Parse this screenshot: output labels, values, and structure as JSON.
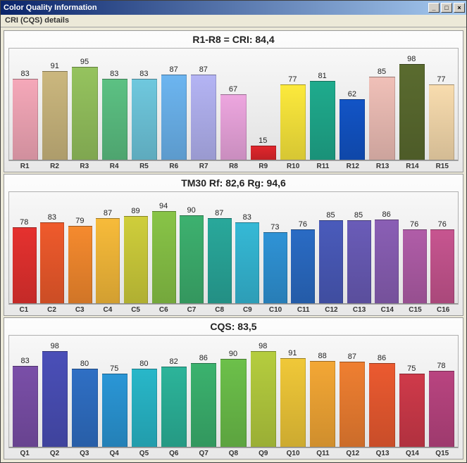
{
  "window": {
    "title": "Color Quality Information",
    "subheader": "CRI (CQS) details"
  },
  "icons": {
    "minimize": "_",
    "maximize": "□",
    "close": "×"
  },
  "charts": [
    {
      "id": "cri",
      "title": "R1-R8 = CRI: 84,4",
      "ymax": 100,
      "title_fontsize": 14,
      "label_fontsize": 10,
      "value_fontsize": 11,
      "background": "linear-gradient(#f8f8f8,#e2e2e2)",
      "bars": [
        {
          "label": "R1",
          "value": 83,
          "color": "#f5a8b9"
        },
        {
          "label": "R2",
          "value": 91,
          "color": "#cbb77e"
        },
        {
          "label": "R3",
          "value": 95,
          "color": "#95c35e"
        },
        {
          "label": "R4",
          "value": 83,
          "color": "#5cc183"
        },
        {
          "label": "R5",
          "value": 83,
          "color": "#6fc8de"
        },
        {
          "label": "R6",
          "value": 87,
          "color": "#6cb5f0"
        },
        {
          "label": "R7",
          "value": 87,
          "color": "#b4b4f4"
        },
        {
          "label": "R8",
          "value": 67,
          "color": "#eda6df"
        },
        {
          "label": "R9",
          "value": 15,
          "color": "#e0262c"
        },
        {
          "label": "R10",
          "value": 77,
          "color": "#fce93c"
        },
        {
          "label": "R11",
          "value": 81,
          "color": "#1fab8d"
        },
        {
          "label": "R12",
          "value": 62,
          "color": "#1254c6"
        },
        {
          "label": "R13",
          "value": 85,
          "color": "#f0c0b8"
        },
        {
          "label": "R14",
          "value": 98,
          "color": "#5a6b2f"
        },
        {
          "label": "R15",
          "value": 77,
          "color": "#f8dcae"
        }
      ]
    },
    {
      "id": "tm30",
      "title": "TM30  Rf: 82,6   Rg: 94,6",
      "ymax": 100,
      "title_fontsize": 14,
      "label_fontsize": 10,
      "value_fontsize": 11,
      "background": "linear-gradient(#f8f8f8,#e2e2e2)",
      "bars": [
        {
          "label": "C1",
          "value": 78,
          "color": "#e5312f"
        },
        {
          "label": "C2",
          "value": 83,
          "color": "#ef5a2c"
        },
        {
          "label": "C3",
          "value": 79,
          "color": "#f58a2e"
        },
        {
          "label": "C4",
          "value": 87,
          "color": "#f7bb3a"
        },
        {
          "label": "C5",
          "value": 89,
          "color": "#cfce3b"
        },
        {
          "label": "C6",
          "value": 94,
          "color": "#88c447"
        },
        {
          "label": "C7",
          "value": 90,
          "color": "#3db16f"
        },
        {
          "label": "C8",
          "value": 87,
          "color": "#29a89b"
        },
        {
          "label": "C9",
          "value": 83,
          "color": "#35b9d6"
        },
        {
          "label": "C10",
          "value": 73,
          "color": "#2f93d6"
        },
        {
          "label": "C11",
          "value": 76,
          "color": "#2a6bc4"
        },
        {
          "label": "C12",
          "value": 85,
          "color": "#4a5bbb"
        },
        {
          "label": "C13",
          "value": 85,
          "color": "#6a5cb8"
        },
        {
          "label": "C14",
          "value": 86,
          "color": "#8a5fb5"
        },
        {
          "label": "C15",
          "value": 76,
          "color": "#b05da8"
        },
        {
          "label": "C16",
          "value": 76,
          "color": "#c75590"
        }
      ]
    },
    {
      "id": "cqs",
      "title": "CQS: 83,5",
      "ymax": 100,
      "title_fontsize": 14,
      "label_fontsize": 10,
      "value_fontsize": 11,
      "background": "linear-gradient(#f8f8f8,#e2e2e2)",
      "bars": [
        {
          "label": "Q1",
          "value": 83,
          "color": "#7a4fa8"
        },
        {
          "label": "Q2",
          "value": 98,
          "color": "#4a4fb8"
        },
        {
          "label": "Q3",
          "value": 80,
          "color": "#2f6fc4"
        },
        {
          "label": "Q4",
          "value": 75,
          "color": "#2a96d6"
        },
        {
          "label": "Q5",
          "value": 80,
          "color": "#28b7c9"
        },
        {
          "label": "Q6",
          "value": 82,
          "color": "#2cb49a"
        },
        {
          "label": "Q7",
          "value": 86,
          "color": "#3bb26e"
        },
        {
          "label": "Q8",
          "value": 90,
          "color": "#6cc04a"
        },
        {
          "label": "Q9",
          "value": 98,
          "color": "#b5cd3e"
        },
        {
          "label": "Q10",
          "value": 91,
          "color": "#f0c838"
        },
        {
          "label": "Q11",
          "value": 88,
          "color": "#f3a735"
        },
        {
          "label": "Q12",
          "value": 87,
          "color": "#ef7f31"
        },
        {
          "label": "Q13",
          "value": 86,
          "color": "#eb5a30"
        },
        {
          "label": "Q14",
          "value": 75,
          "color": "#cf3a4a"
        },
        {
          "label": "Q15",
          "value": 78,
          "color": "#b94480"
        }
      ]
    }
  ]
}
